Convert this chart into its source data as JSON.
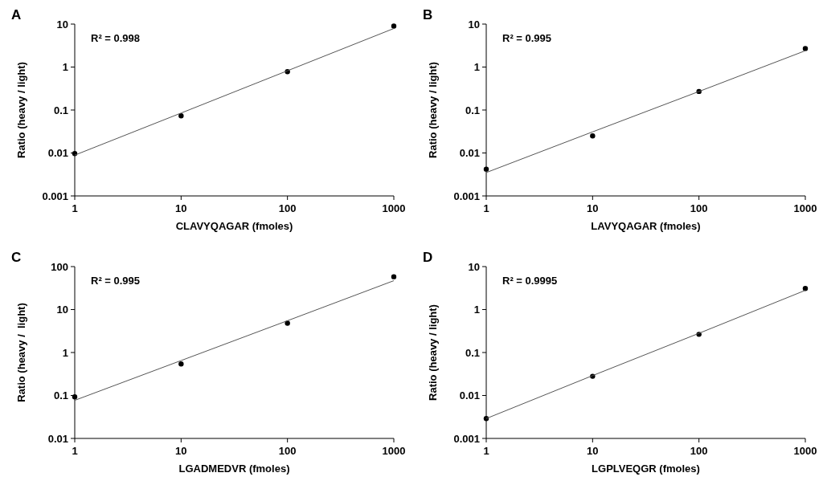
{
  "chart_data": [
    {
      "type": "scatter",
      "title": "A",
      "xlabel": "CLAVYQAGAR (fmoles)",
      "ylabel": "Ratio (heavy / light)",
      "log": "xy",
      "xlim": [
        1,
        1000
      ],
      "xticks": [
        1,
        10,
        100,
        1000
      ],
      "ylim": [
        0.001,
        10
      ],
      "yticks": [
        0.001,
        0.01,
        0.1,
        1,
        10
      ],
      "marker": "circle",
      "grid": false,
      "annotations": [
        "R² = 0.998"
      ],
      "x": [
        1,
        10,
        100,
        1000
      ],
      "series": [
        {
          "color": "#000000",
          "values": [
            0.0097,
            0.073,
            0.78,
            9.0
          ]
        },
        {
          "type": "line",
          "color": "#555555",
          "marker": "none",
          "values": [
            0.0089,
            0.085,
            0.82,
            7.9
          ]
        }
      ]
    },
    {
      "type": "scatter",
      "title": "B",
      "xlabel": "LAVYQAGAR (fmoles)",
      "ylabel": "Ratio (heavy / light)",
      "log": "xy",
      "xlim": [
        1,
        1000
      ],
      "xticks": [
        1,
        10,
        100,
        1000
      ],
      "ylim": [
        0.001,
        10
      ],
      "yticks": [
        0.001,
        0.01,
        0.1,
        1,
        10
      ],
      "marker": "circle",
      "grid": false,
      "annotations": [
        "R² = 0.995"
      ],
      "x": [
        1,
        10,
        100,
        1000
      ],
      "series": [
        {
          "color": "#000000",
          "values": [
            0.0042,
            0.025,
            0.27,
            2.7
          ]
        },
        {
          "type": "line",
          "color": "#555555",
          "marker": "none",
          "values": [
            0.0035,
            0.031,
            0.27,
            2.4
          ]
        }
      ]
    },
    {
      "type": "scatter",
      "title": "C",
      "xlabel": "LGADMEDVR (fmoles)",
      "ylabel": "Ratio (heavy /  light)",
      "log": "xy",
      "xlim": [
        1,
        1000
      ],
      "xticks": [
        1,
        10,
        100,
        1000
      ],
      "ylim": [
        0.01,
        100
      ],
      "yticks": [
        0.01,
        0.1,
        1,
        10,
        100
      ],
      "marker": "circle",
      "grid": false,
      "annotations": [
        "R² = 0.995"
      ],
      "x": [
        1,
        10,
        100,
        1000
      ],
      "series": [
        {
          "color": "#000000",
          "values": [
            0.093,
            0.54,
            4.8,
            58
          ]
        },
        {
          "type": "line",
          "color": "#555555",
          "marker": "none",
          "values": [
            0.077,
            0.65,
            5.5,
            47
          ]
        }
      ]
    },
    {
      "type": "scatter",
      "title": "D",
      "xlabel": "LGPLVEQGR (fmoles)",
      "ylabel": "Ratio (heavy / light)",
      "log": "xy",
      "xlim": [
        1,
        1000
      ],
      "xticks": [
        1,
        10,
        100,
        1000
      ],
      "ylim": [
        0.001,
        10
      ],
      "yticks": [
        0.001,
        0.01,
        0.1,
        1,
        10
      ],
      "marker": "circle",
      "grid": false,
      "annotations": [
        "R² = 0.9995"
      ],
      "x": [
        1,
        10,
        100,
        1000
      ],
      "series": [
        {
          "color": "#000000",
          "values": [
            0.0029,
            0.028,
            0.265,
            3.1
          ]
        },
        {
          "type": "line",
          "color": "#555555",
          "marker": "none",
          "values": [
            0.0029,
            0.029,
            0.28,
            2.8
          ]
        }
      ]
    }
  ]
}
